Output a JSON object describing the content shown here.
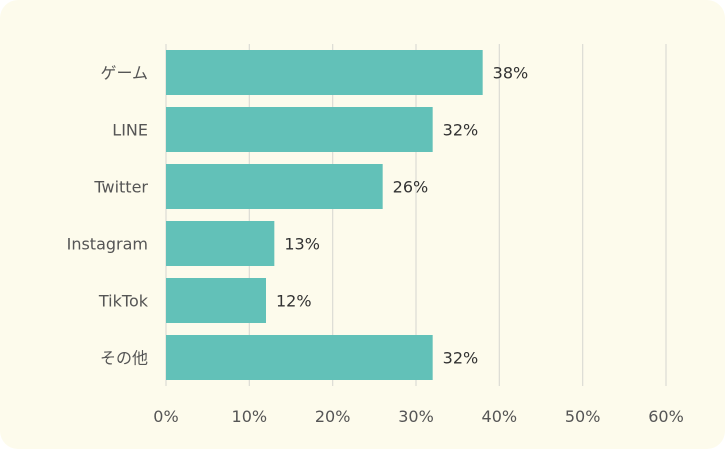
{
  "chart_data": {
    "type": "bar",
    "orientation": "horizontal",
    "categories": [
      "ゲーム",
      "LINE",
      "Twitter",
      "Instagram",
      "TikTok",
      "その他"
    ],
    "values": [
      38,
      32,
      26,
      13,
      12,
      32
    ],
    "data_labels": [
      "38%",
      "32%",
      "26%",
      "13%",
      "12%",
      "32%"
    ],
    "xlim": [
      0,
      60
    ],
    "x_ticks": [
      0,
      10,
      20,
      30,
      40,
      50,
      60
    ],
    "x_tick_labels": [
      "0%",
      "10%",
      "20%",
      "30%",
      "40%",
      "50%",
      "60%"
    ],
    "grid": true,
    "legend": "none",
    "colors": {
      "bar": "#62c1b8",
      "grid": "#dcdcd4",
      "background": "#fdfbec"
    }
  }
}
